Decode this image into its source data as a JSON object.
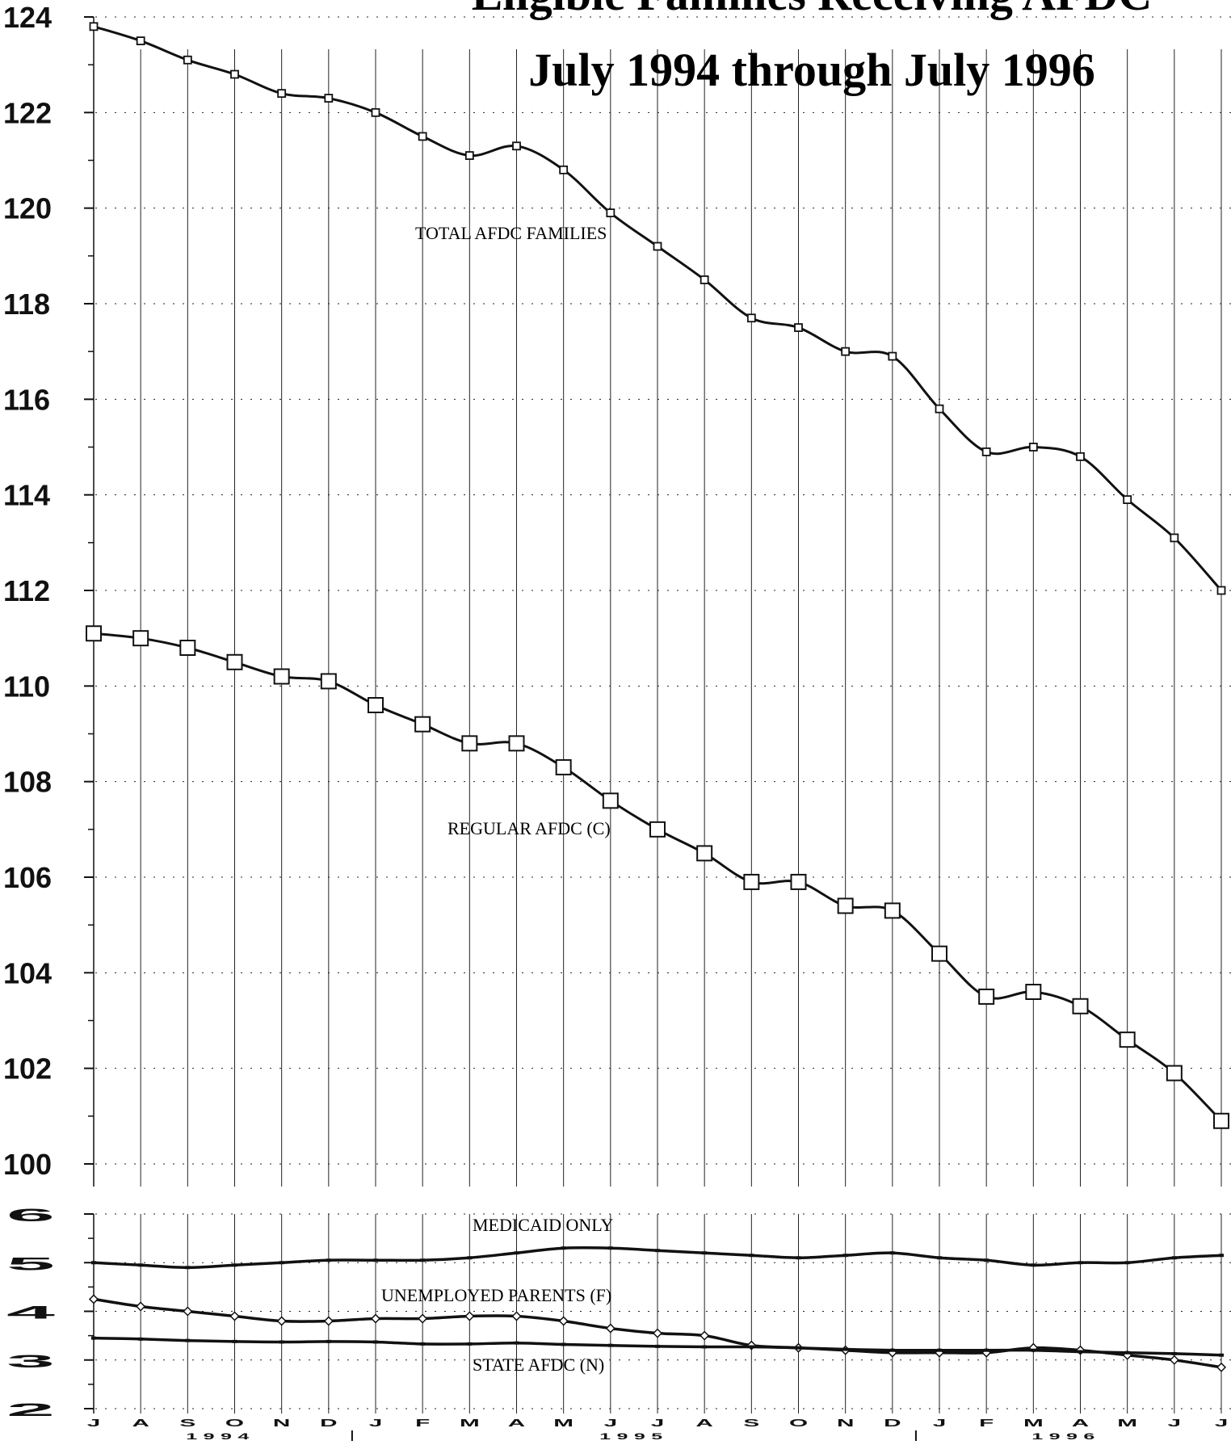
{
  "chart_data": [
    {
      "type": "line",
      "title_line1": "Eligible Families Receiving AFDC",
      "title_line2": "July 1994 through July 1996",
      "xlabel": "",
      "ylabel": "",
      "ylim": [
        100,
        124
      ],
      "yticks": [
        "100",
        "102",
        "104",
        "106",
        "108",
        "110",
        "112",
        "114",
        "116",
        "118",
        "120",
        "122",
        "124"
      ],
      "grid": true,
      "x": [
        "J",
        "A",
        "S",
        "O",
        "N",
        "D",
        "J",
        "F",
        "M",
        "A",
        "M",
        "J",
        "J",
        "A",
        "S",
        "O",
        "N",
        "D",
        "J",
        "F",
        "M",
        "A",
        "M",
        "J",
        "J"
      ],
      "series": [
        {
          "name": "TOTAL AFDC FAMILIES",
          "values": [
            123.8,
            123.5,
            123.1,
            122.8,
            122.4,
            122.3,
            122.0,
            121.5,
            121.1,
            121.3,
            120.8,
            119.9,
            119.2,
            118.5,
            117.7,
            117.5,
            117.0,
            116.9,
            115.8,
            114.9,
            115.0,
            114.8,
            113.9,
            113.1,
            112.0
          ]
        },
        {
          "name": "REGULAR AFDC (C)",
          "values": [
            111.1,
            111.0,
            110.8,
            110.5,
            110.2,
            110.1,
            109.6,
            109.2,
            108.8,
            108.8,
            108.3,
            107.6,
            107.0,
            106.5,
            105.9,
            105.9,
            105.4,
            105.3,
            104.4,
            103.5,
            103.6,
            103.3,
            102.6,
            101.9,
            100.9
          ]
        }
      ]
    },
    {
      "type": "line",
      "ylim": [
        2,
        6
      ],
      "yticks": [
        "2",
        "3",
        "4",
        "5",
        "6"
      ],
      "grid": true,
      "x": [
        "J",
        "A",
        "S",
        "O",
        "N",
        "D",
        "J",
        "F",
        "M",
        "A",
        "M",
        "J",
        "J",
        "A",
        "S",
        "O",
        "N",
        "D",
        "J",
        "F",
        "M",
        "A",
        "M",
        "J",
        "J"
      ],
      "years": [
        "1994",
        "1995",
        "1996"
      ],
      "series": [
        {
          "name": "MEDICAID ONLY",
          "values": [
            5.0,
            4.95,
            4.9,
            4.95,
            5.0,
            5.05,
            5.05,
            5.05,
            5.1,
            5.2,
            5.3,
            5.3,
            5.25,
            5.2,
            5.15,
            5.1,
            5.15,
            5.2,
            5.1,
            5.05,
            4.95,
            5.0,
            5.0,
            5.1,
            5.15
          ]
        },
        {
          "name": "UNEMPLOYED PARENTS (F)",
          "values": [
            4.25,
            4.1,
            4.0,
            3.9,
            3.8,
            3.8,
            3.85,
            3.85,
            3.9,
            3.9,
            3.8,
            3.65,
            3.55,
            3.5,
            3.3,
            3.25,
            3.2,
            3.15,
            3.15,
            3.15,
            3.25,
            3.2,
            3.1,
            3.0,
            2.85
          ]
        },
        {
          "name": "STATE AFDC (N)",
          "values": [
            3.45,
            3.43,
            3.4,
            3.38,
            3.37,
            3.38,
            3.37,
            3.33,
            3.33,
            3.35,
            3.32,
            3.3,
            3.28,
            3.27,
            3.27,
            3.25,
            3.22,
            3.2,
            3.2,
            3.2,
            3.2,
            3.17,
            3.15,
            3.13,
            3.1
          ]
        }
      ]
    }
  ],
  "colors": {
    "ink": "#111111",
    "grid": "#222222",
    "background": "#ffffff"
  }
}
